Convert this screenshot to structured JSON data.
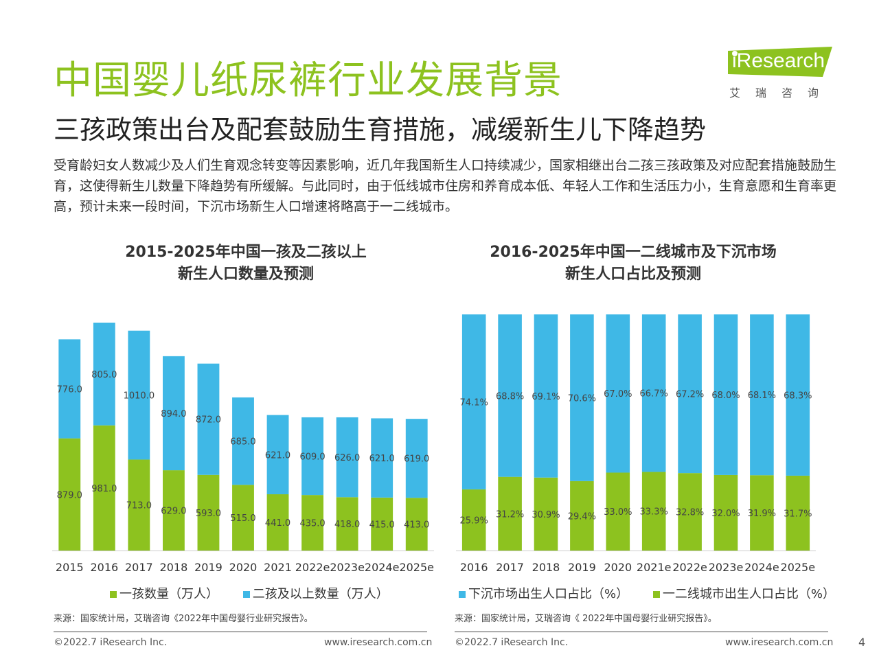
{
  "header": {
    "title": "中国婴儿纸尿裤行业发展背景",
    "subtitle": "三孩政策出台及配套鼓励生育措施，减缓新生儿下降趋势",
    "intro": "受育龄妇女人数减少及人们生育观念转变等因素影响，近几年我国新生人口持续减少，国家相继出台二孩三孩政策及对应配套措施鼓励生育，这使得新生儿数量下降趋势有所缓解。与此同时，由于低线城市住房和养育成本低、年轻人工作和生活压力小，生育意愿和生育率更高，预计未来一段时间，下沉市场新生人口增速将略高于一二线城市。"
  },
  "logo": {
    "brand": "iResearch",
    "sub": "艾瑞咨询"
  },
  "colors": {
    "green": "#8dc21f",
    "blue": "#3fb8e6"
  },
  "chart_data": [
    {
      "type": "bar",
      "stacked": true,
      "title_line1": "2015-2025年中国一孩及二孩以上",
      "title_line2": "新生人口数量及预测",
      "categories": [
        "2015",
        "2016",
        "2017",
        "2018",
        "2019",
        "2020",
        "2021",
        "2022e",
        "2023e",
        "2024e",
        "2025e"
      ],
      "series": [
        {
          "name": "一孩数量（万人）",
          "color": "#8dc21f",
          "values": [
            879.0,
            981.0,
            713.0,
            629.0,
            593.0,
            515.0,
            441.0,
            435.0,
            418.0,
            415.0,
            413.0
          ],
          "labels": [
            "879.0",
            "981.0",
            "713.0",
            "629.0",
            "593.0",
            "515.0",
            "441.0",
            "435.0",
            "418.0",
            "415.0",
            "413.0"
          ]
        },
        {
          "name": "二孩及以上数量（万人）",
          "color": "#3fb8e6",
          "values": [
            776.0,
            805.0,
            1010.0,
            894.0,
            872.0,
            685.0,
            621.0,
            609.0,
            626.0,
            621.0,
            619.0
          ],
          "labels": [
            "776.0",
            "805.0",
            "1010.0",
            "894.0",
            "872.0",
            "685.0",
            "621.0",
            "609.0",
            "626.0",
            "621.0",
            "619.0"
          ]
        }
      ],
      "source": "来源：国家统计局，艾瑞咨询《2022年中国母婴行业研究报告》。"
    },
    {
      "type": "bar",
      "stacked": true,
      "percent": true,
      "title_line1": "2016-2025年中国一二线城市及下沉市场",
      "title_line2": "新生人口占比及预测",
      "categories": [
        "2016",
        "2017",
        "2018",
        "2019",
        "2020",
        "2021e",
        "2022e",
        "2023e",
        "2024e",
        "2025e"
      ],
      "series": [
        {
          "name": "一二线城市出生人口占比（%）",
          "color": "#8dc21f",
          "values": [
            25.9,
            31.2,
            30.9,
            29.4,
            33.0,
            33.3,
            32.8,
            32.0,
            31.9,
            31.7
          ],
          "labels": [
            "25.9%",
            "31.2%",
            "30.9%",
            "29.4%",
            "33.0%",
            "33.3%",
            "32.8%",
            "32.0%",
            "31.9%",
            "31.7%"
          ]
        },
        {
          "name": "下沉市场出生人口占比（%）",
          "color": "#3fb8e6",
          "values": [
            74.1,
            68.8,
            69.1,
            70.6,
            67.0,
            66.7,
            67.2,
            68.0,
            68.1,
            68.3
          ],
          "labels": [
            "74.1%",
            "68.8%",
            "69.1%",
            "70.6%",
            "67.0%",
            "66.7%",
            "67.2%",
            "68.0%",
            "68.1%",
            "68.3%"
          ]
        }
      ],
      "source": "来源：国家统计局，艾瑞咨询《 2022年中国母婴行业研究报告》。"
    }
  ],
  "footer": {
    "left_copyright": "©2022.7 iResearch Inc.",
    "left_url": "www.iresearch.com.cn",
    "right_copyright": "©2022.7 iResearch Inc.",
    "right_url": "www.iresearch.com.cn",
    "page": "4"
  }
}
